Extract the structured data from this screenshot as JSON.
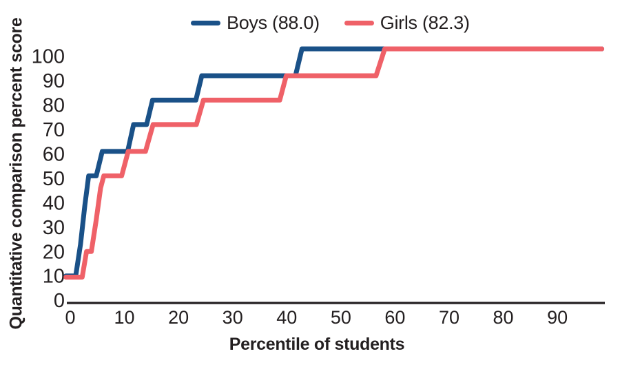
{
  "chart_data": {
    "type": "line",
    "subtype": "step-cumulative",
    "title": "",
    "xlabel": "Percentile of students",
    "ylabel": "Quantitative comparison percent score",
    "x_ticks": [
      0,
      10,
      20,
      30,
      40,
      50,
      60,
      70,
      80,
      90
    ],
    "y_ticks": [
      0,
      10,
      20,
      30,
      40,
      50,
      60,
      70,
      80,
      90,
      100
    ],
    "xlim": [
      -1,
      99
    ],
    "ylim": [
      0,
      105
    ],
    "grid": false,
    "legend_position": "top-center",
    "axis_color": "#231f20",
    "series": [
      {
        "name": "boys",
        "label": "Boys (88.0)",
        "mean_shown": 88.0,
        "color": "#1a5188",
        "points": [
          [
            -0.8,
            10
          ],
          [
            1.0,
            10
          ],
          [
            1.9,
            23
          ],
          [
            2.7,
            39
          ],
          [
            3.4,
            51
          ],
          [
            4.8,
            51
          ],
          [
            5.9,
            61
          ],
          [
            10.6,
            61
          ],
          [
            11.7,
            72
          ],
          [
            14.1,
            72
          ],
          [
            15.2,
            82
          ],
          [
            23.2,
            82
          ],
          [
            24.3,
            92
          ],
          [
            41.6,
            92
          ],
          [
            42.8,
            103
          ],
          [
            98.2,
            103
          ]
        ]
      },
      {
        "name": "girls",
        "label": "Girls (82.3)",
        "mean_shown": 82.3,
        "color": "#ef6168",
        "points": [
          [
            -0.8,
            9.5
          ],
          [
            2.2,
            9.5
          ],
          [
            3.0,
            20
          ],
          [
            3.9,
            20
          ],
          [
            4.8,
            33
          ],
          [
            5.6,
            46
          ],
          [
            6.2,
            51
          ],
          [
            9.5,
            51
          ],
          [
            10.7,
            61
          ],
          [
            13.9,
            61
          ],
          [
            15.3,
            72
          ],
          [
            23.3,
            72
          ],
          [
            24.6,
            82
          ],
          [
            38.7,
            82
          ],
          [
            39.9,
            92
          ],
          [
            56.5,
            92
          ],
          [
            58.1,
            103
          ],
          [
            98.2,
            103
          ]
        ]
      }
    ]
  }
}
